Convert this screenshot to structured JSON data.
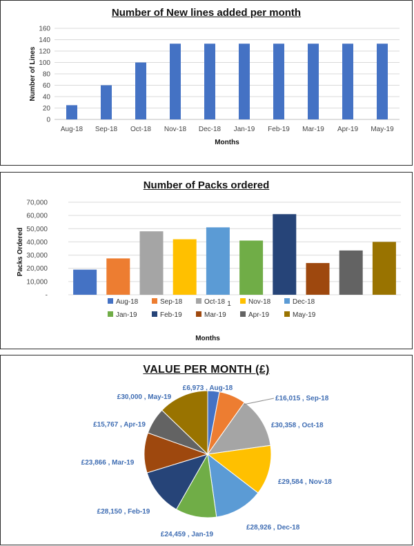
{
  "chart_data": [
    {
      "type": "bar",
      "title": "Number of New lines added per month",
      "xlabel": "Months",
      "ylabel": "Number of Lines",
      "categories": [
        "Aug-18",
        "Sep-18",
        "Oct-18",
        "Nov-18",
        "Dec-18",
        "Jan-19",
        "Feb-19",
        "Mar-19",
        "Apr-19",
        "May-19"
      ],
      "values": [
        25,
        60,
        100,
        133,
        133,
        133,
        133,
        133,
        133,
        133
      ],
      "yticks": [
        "0",
        "20",
        "40",
        "60",
        "80",
        "100",
        "120",
        "140",
        "160"
      ],
      "ylim": [
        0,
        160
      ],
      "grid": true,
      "color": "#4472C4"
    },
    {
      "type": "bar",
      "title": "Number of Packs ordered",
      "xlabel": "Months",
      "ylabel": "Packs  Ordered",
      "categories": [
        "Aug-18",
        "Sep-18",
        "Oct-18",
        "Nov-18",
        "Dec-18",
        "Jan-19",
        "Feb-19",
        "Mar-19",
        "Apr-19",
        "May-19"
      ],
      "values": [
        19000,
        27500,
        48000,
        42000,
        51000,
        41000,
        61000,
        24000,
        33500,
        40000
      ],
      "colors": [
        "#4472C4",
        "#ED7D31",
        "#A5A5A5",
        "#FFC000",
        "#5B9BD5",
        "#70AD47",
        "#264478",
        "#9E480E",
        "#636363",
        "#997300"
      ],
      "yticks": [
        "-",
        "10,000",
        "20,000",
        "30,000",
        "40,000",
        "50,000",
        "60,000",
        "70,000"
      ],
      "ylim": [
        0,
        70000
      ],
      "grid": true,
      "legend": "bottom",
      "stray_label": "1"
    },
    {
      "type": "pie",
      "title": "VALUE PER MONTH  (£)",
      "labels": [
        "Aug-18",
        "Sep-18",
        "Oct-18",
        "Nov-18",
        "Dec-18",
        "Jan-19",
        "Feb-19",
        "Mar-19",
        "Apr-19",
        "May-19"
      ],
      "values": [
        6973,
        16015,
        30358,
        29584,
        28926,
        24459,
        28150,
        23866,
        15767,
        30000
      ],
      "value_labels": [
        "£6,973",
        "£16,015",
        "£30,358",
        "£29,584",
        "£28,926",
        "£24,459",
        "£28,150",
        "£23,866",
        "£15,767",
        "£30,000"
      ],
      "colors": [
        "#4472C4",
        "#ED7D31",
        "#A5A5A5",
        "#FFC000",
        "#5B9BD5",
        "#70AD47",
        "#264478",
        "#9E480E",
        "#636363",
        "#997300"
      ]
    }
  ]
}
